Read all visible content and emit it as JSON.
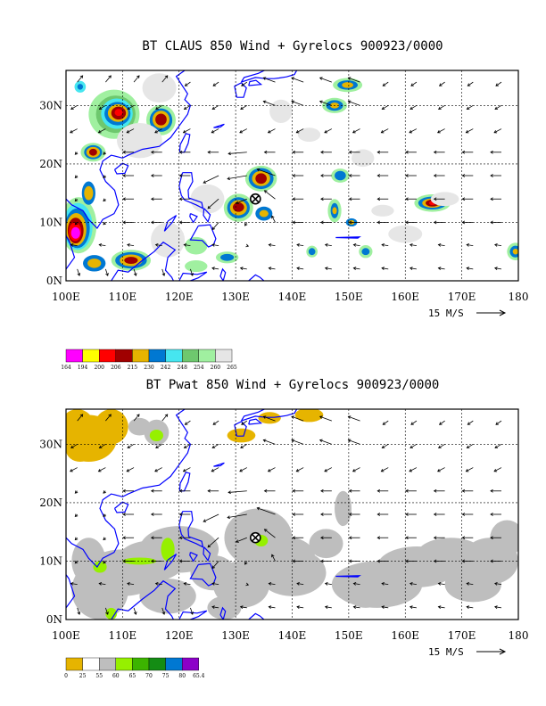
{
  "panels": [
    {
      "id": "claus",
      "title": "BT CLAUS 850 Wind + Gyrelocs 900923/0000",
      "lon_labels": [
        "100E",
        "110E",
        "120E",
        "130E",
        "140E",
        "150E",
        "160E",
        "170E",
        "180"
      ],
      "lat_labels": [
        "0N",
        "10N",
        "20N",
        "30N"
      ],
      "reference_vector": "15 M/S",
      "legend": {
        "labels": [
          "164",
          "194",
          "200",
          "206",
          "215",
          "230",
          "242",
          "248",
          "254",
          "260",
          "265"
        ],
        "colors": [
          "#ff00ff",
          "#ffff00",
          "#ff0000",
          "#a00000",
          "#e6b400",
          "#0078d2",
          "#46e6f0",
          "#6ec86e",
          "#a0f0a0",
          "#e6e6e6"
        ]
      },
      "storm": {
        "lon": 133.5,
        "lat": 14.0
      }
    },
    {
      "id": "pwat",
      "title": "BT Pwat 850 Wind + Gyrelocs 900923/0000",
      "lon_labels": [
        "100E",
        "110E",
        "120E",
        "130E",
        "140E",
        "150E",
        "160E",
        "170E",
        "180"
      ],
      "lat_labels": [
        "0N",
        "10N",
        "20N",
        "30N"
      ],
      "reference_vector": "15 M/S",
      "legend": {
        "labels": [
          "0",
          "25",
          "55",
          "60",
          "65",
          "70",
          "75",
          "80",
          "65.4"
        ],
        "colors": [
          "#e6b400",
          "#ffffff",
          "#bebebe",
          "#96f000",
          "#3cb400",
          "#148c14",
          "#0078d2",
          "#8c00c8"
        ]
      },
      "storm": {
        "lon": 133.5,
        "lat": 14.0
      }
    }
  ],
  "map": {
    "lon_range": [
      100,
      180
    ],
    "lat_range": [
      0,
      36
    ]
  },
  "colors": {
    "coast": "#0000ff",
    "grid": "#000000"
  }
}
